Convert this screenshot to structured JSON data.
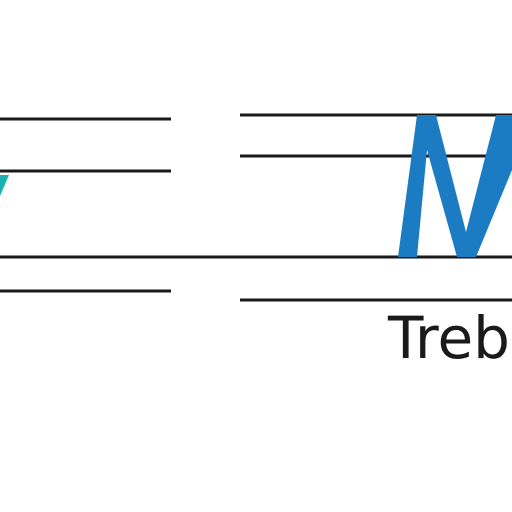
{
  "caption": "Trebu",
  "colors": {
    "line": "#1a1a1a",
    "glyph_blue": "#1b7cc4",
    "glyph_teal": "#1ab1b3",
    "background": "#ffffff"
  }
}
